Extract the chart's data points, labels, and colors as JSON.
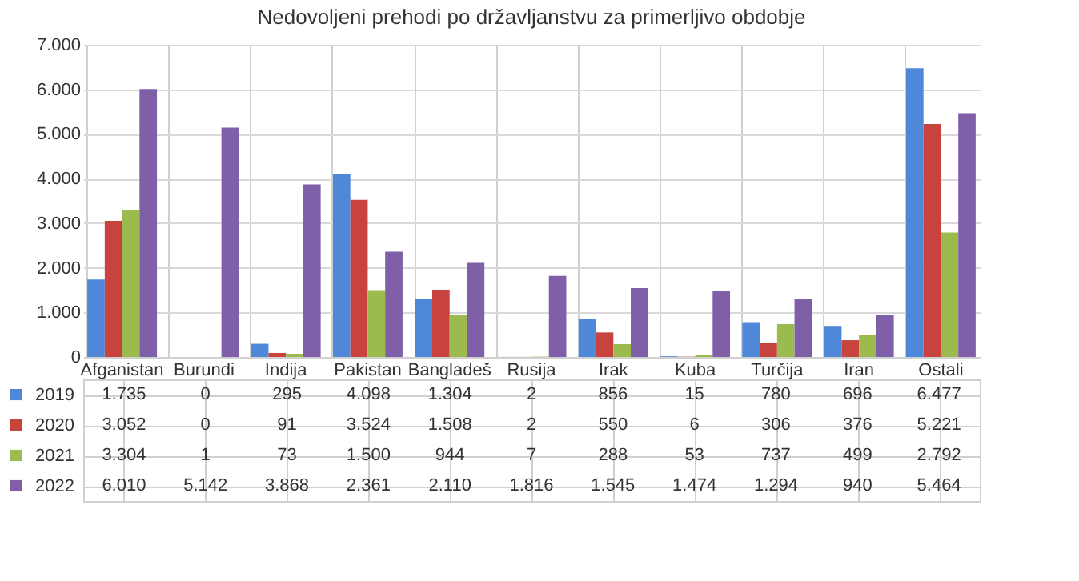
{
  "chart_data": {
    "type": "bar",
    "title": "Nedovoljeni prehodi po državljanstvu za primerljivo obdobje",
    "categories": [
      "Afganistan",
      "Burundi",
      "Indija",
      "Pakistan",
      "Bangladeš",
      "Rusija",
      "Irak",
      "Kuba",
      "Turčija",
      "Iran",
      "Ostali"
    ],
    "series": [
      {
        "name": "2019",
        "color": "#4f88d8",
        "values": [
          1735,
          0,
          295,
          4098,
          1304,
          2,
          856,
          15,
          780,
          696,
          6477
        ],
        "value_labels": [
          "1.735",
          "0",
          "295",
          "4.098",
          "1.304",
          "2",
          "856",
          "15",
          "780",
          "696",
          "6.477"
        ]
      },
      {
        "name": "2020",
        "color": "#c8423e",
        "values": [
          3052,
          0,
          91,
          3524,
          1508,
          2,
          550,
          6,
          306,
          376,
          5221
        ],
        "value_labels": [
          "3.052",
          "0",
          "91",
          "3.524",
          "1.508",
          "2",
          "550",
          "6",
          "306",
          "376",
          "5.221"
        ]
      },
      {
        "name": "2021",
        "color": "#9bbb4f",
        "values": [
          3304,
          1,
          73,
          1500,
          944,
          7,
          288,
          53,
          737,
          499,
          2792
        ],
        "value_labels": [
          "3.304",
          "1",
          "73",
          "1.500",
          "944",
          "7",
          "288",
          "53",
          "737",
          "499",
          "2.792"
        ]
      },
      {
        "name": "2022",
        "color": "#7f5fa8",
        "values": [
          6010,
          5142,
          3868,
          2361,
          2110,
          1816,
          1545,
          1474,
          1294,
          940,
          5464
        ],
        "value_labels": [
          "6.010",
          "5.142",
          "3.868",
          "2.361",
          "2.110",
          "1.816",
          "1.545",
          "1.474",
          "1.294",
          "940",
          "5.464"
        ]
      }
    ],
    "ylim": [
      0,
      7000
    ],
    "yticks": [
      {
        "value": 0,
        "label": "0"
      },
      {
        "value": 1000,
        "label": "1.000"
      },
      {
        "value": 2000,
        "label": "2.000"
      },
      {
        "value": 3000,
        "label": "3.000"
      },
      {
        "value": 4000,
        "label": "4.000"
      },
      {
        "value": 5000,
        "label": "5.000"
      },
      {
        "value": 6000,
        "label": "6.000"
      },
      {
        "value": 7000,
        "label": "7.000"
      }
    ],
    "grid": "y",
    "legend": "bottom"
  }
}
